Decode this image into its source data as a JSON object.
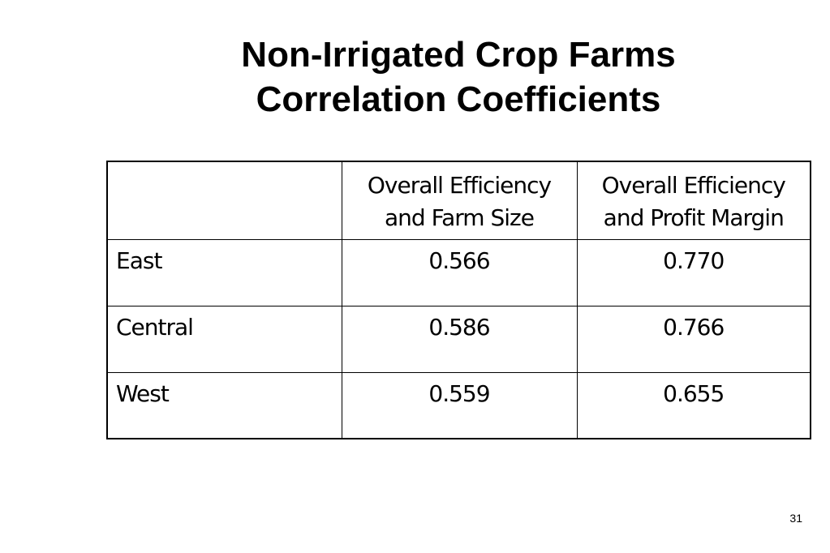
{
  "slide": {
    "title_line1": "Non-Irrigated Crop Farms",
    "title_line2": "Correlation Coefficients",
    "page_number": "31"
  },
  "table": {
    "corner_header": "",
    "headers": [
      {
        "line1": "Overall Efficiency",
        "line2": "and Farm Size"
      },
      {
        "line1": "Overall Efficiency",
        "line2": "and Profit Margin"
      }
    ],
    "rows": [
      {
        "label": "East",
        "values": [
          "0.566",
          "0.770"
        ]
      },
      {
        "label": "Central",
        "values": [
          "0.586",
          "0.766"
        ]
      },
      {
        "label": "West",
        "values": [
          "0.559",
          "0.655"
        ]
      }
    ]
  }
}
